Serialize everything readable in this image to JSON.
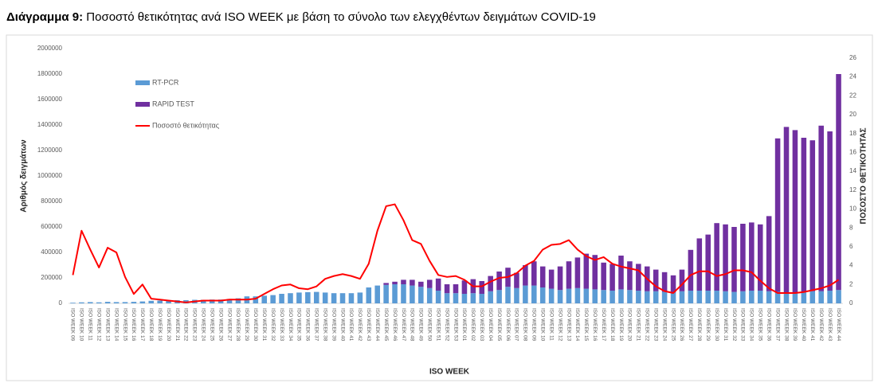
{
  "chart_data": {
    "type": "bar",
    "title_label": "Διάγραμμα 9:",
    "title": "Ποσοστό θετικότητας ανά ISO WEEK με βάση το σύνολο των ελεγχθέντων δειγμάτων COVID-19",
    "x_label": "ISO WEEK",
    "y_label": "Αριθμός δειγμάτων",
    "y2_label": "ΠΟΣΟΣΤΟ ΘΕΤΙΚΟΤΗΤΑΣ",
    "stacked": true,
    "legend": "top-left",
    "categories": [
      "ISO WEEK 09",
      "ISO WEEK 10",
      "ISO WEEK 11",
      "ISO WEEK 12",
      "ISO WEEK 13",
      "ISO WEEK 14",
      "ISO WEEK 15",
      "ISO WEEK 16",
      "ISO WEEK 17",
      "ISO WEEK 18",
      "ISO WEEK 19",
      "ISO WEEK 20",
      "ISO WEEK 21",
      "ISO WEEK 22",
      "ISO WEEK 23",
      "ISO WEEK 24",
      "ISO WEEK 25",
      "ISO WEEK 26",
      "ISO WEEK 27",
      "ISO WEEK 28",
      "ISO WEEK 29",
      "ISO WEEK 30",
      "ISO WEEK 31",
      "ISO WEEK 32",
      "ISO WEEK 33",
      "ISO WEEK 34",
      "ISO WEEK 35",
      "ISO WEEK 36",
      "ISO WEEK 37",
      "ISO WEEK 38",
      "ISO WEEK 39",
      "ISO WEEK 40",
      "ISO WEEK 41",
      "ISO WEEK 42",
      "ISO WEEK 43",
      "ISO WEEK 44",
      "ISO WEEK 45",
      "ISO WEEK 46",
      "ISO WEEK 47",
      "ISO WEEK 48",
      "ISO WEEK 49",
      "ISO WEEK 50",
      "ISO WEEK 51",
      "ISO WEEK 52",
      "ISO WEEK 53",
      "ISO WEEK 01",
      "ISO WEEK 02",
      "ISO WEEK 03",
      "ISO WEEK 04",
      "ISO WEEK 05",
      "ISO WEEK 06",
      "ISO WEEK 07",
      "ISO WEEK 08",
      "ISO WEEK 09",
      "ISO WEEK 10",
      "ISO WEEK 11",
      "ISO WEEK 12",
      "ISO WEEK 13",
      "ISO WEEK 14",
      "ISO WEEK 15",
      "ISO WEEK 16",
      "ISO WEEK 17",
      "ISO WEEK 18",
      "ISO WEEK 19",
      "ISO WEEK 20",
      "ISO WEEK 21",
      "ISO WEEK 22",
      "ISO WEEK 23",
      "ISO WEEK 24",
      "ISO WEEK 25",
      "ISO WEEK 26",
      "ISO WEEK 27",
      "ISO WEEK 28",
      "ISO WEEK 29",
      "ISO WEEK 30",
      "ISO WEEK 31",
      "ISO WEEK 32",
      "ISO WEEK 33",
      "ISO WEEK 34",
      "ISO WEEK 35",
      "ISO WEEK 36",
      "ISO WEEK 37",
      "ISO WEEK 38",
      "ISO WEEK 39",
      "ISO WEEK 40",
      "ISO WEEK 41",
      "ISO WEEK 42",
      "ISO WEEK 43",
      "ISO WEEK 44"
    ],
    "series": [
      {
        "name": "RT-PCR",
        "color": "#5b9bd5",
        "type": "bar",
        "values": [
          5000,
          8000,
          10000,
          8000,
          12000,
          10000,
          10000,
          12000,
          15000,
          20000,
          22000,
          20000,
          25000,
          25000,
          28000,
          28000,
          30000,
          30000,
          35000,
          40000,
          55000,
          55000,
          60000,
          65000,
          75000,
          80000,
          85000,
          88000,
          90000,
          85000,
          80000,
          80000,
          80000,
          85000,
          125000,
          140000,
          145000,
          150000,
          150000,
          140000,
          130000,
          120000,
          100000,
          80000,
          80000,
          75000,
          80000,
          75000,
          95000,
          105000,
          130000,
          120000,
          140000,
          140000,
          125000,
          115000,
          105000,
          115000,
          120000,
          115000,
          110000,
          105000,
          100000,
          110000,
          105000,
          100000,
          95000,
          95000,
          90000,
          85000,
          95000,
          100000,
          100000,
          100000,
          100000,
          95000,
          90000,
          95000,
          100000,
          100000,
          95000,
          90000,
          85000,
          85000,
          90000,
          95000,
          95000,
          100000,
          105000
        ]
      },
      {
        "name": "RAPID TEST",
        "color": "#7030a0",
        "type": "bar",
        "values": [
          0,
          0,
          0,
          0,
          0,
          0,
          0,
          0,
          0,
          0,
          0,
          0,
          0,
          0,
          0,
          0,
          0,
          0,
          0,
          0,
          0,
          0,
          0,
          0,
          0,
          0,
          0,
          0,
          0,
          0,
          0,
          0,
          0,
          0,
          0,
          0,
          15000,
          20000,
          35000,
          45000,
          40000,
          65000,
          95000,
          70000,
          70000,
          105000,
          110000,
          100000,
          120000,
          145000,
          150000,
          120000,
          160000,
          190000,
          165000,
          150000,
          185000,
          215000,
          240000,
          275000,
          270000,
          215000,
          210000,
          265000,
          225000,
          210000,
          195000,
          170000,
          155000,
          135000,
          170000,
          320000,
          410000,
          440000,
          530000,
          525000,
          510000,
          530000,
          535000,
          520000,
          590000,
          1205000,
          1300000,
          1275000,
          1210000,
          1185000,
          1300000,
          1250000,
          1695000
        ]
      },
      {
        "name": "Ποσοστό θετικότητας",
        "color": "#ff0000",
        "type": "line",
        "axis": "y2",
        "values": [
          3.0,
          7.7,
          5.7,
          3.8,
          5.9,
          5.4,
          2.8,
          1.0,
          2.0,
          0.5,
          0.4,
          0.3,
          0.2,
          0.1,
          0.2,
          0.3,
          0.3,
          0.3,
          0.4,
          0.4,
          0.4,
          0.5,
          1.0,
          1.5,
          1.9,
          2.0,
          1.6,
          1.5,
          1.8,
          2.6,
          2.9,
          3.1,
          2.9,
          2.6,
          4.2,
          7.7,
          10.3,
          10.5,
          8.8,
          6.7,
          6.3,
          4.5,
          3.0,
          2.8,
          2.9,
          2.5,
          1.8,
          1.8,
          2.3,
          2.7,
          2.8,
          3.2,
          4.0,
          4.5,
          5.7,
          6.2,
          6.3,
          6.7,
          5.7,
          5.0,
          4.6,
          4.9,
          4.2,
          3.9,
          3.7,
          3.5,
          2.6,
          1.8,
          1.3,
          1.1,
          2.0,
          3.0,
          3.4,
          3.4,
          2.9,
          3.1,
          3.5,
          3.5,
          3.3,
          2.4,
          1.6,
          1.1,
          1.1,
          1.1,
          1.2,
          1.4,
          1.6,
          1.9,
          2.5
        ]
      }
    ],
    "ylim": [
      0,
      2000000
    ],
    "yticks": [
      0,
      200000,
      400000,
      600000,
      800000,
      1000000,
      1200000,
      1400000,
      1600000,
      1800000,
      2000000
    ],
    "y2lim": [
      0,
      27
    ],
    "y2ticks": [
      0,
      2,
      4,
      6,
      8,
      10,
      12,
      14,
      16,
      18,
      20,
      22,
      24,
      26
    ]
  }
}
